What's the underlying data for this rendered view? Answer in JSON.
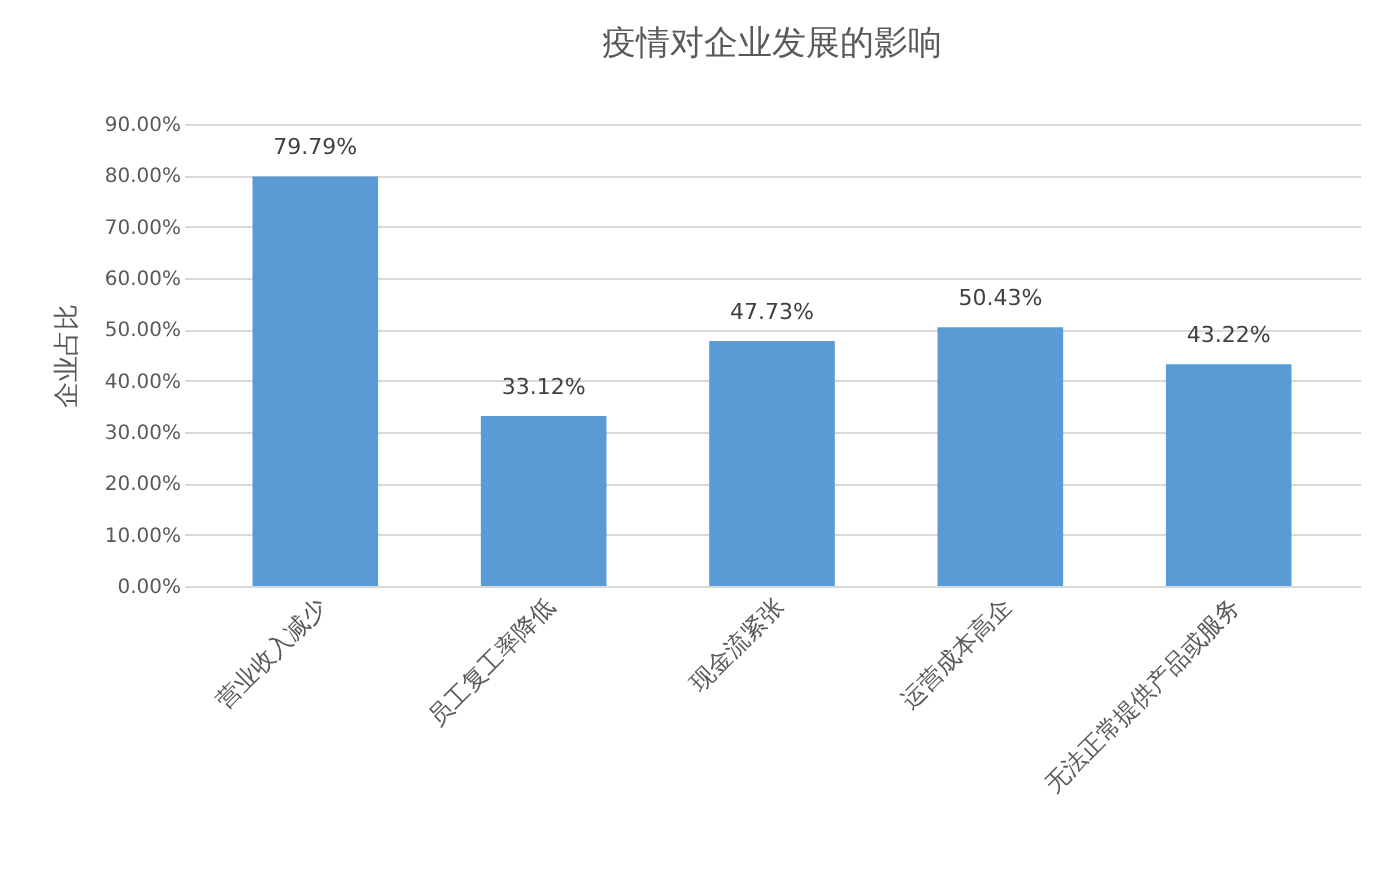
{
  "chart_data": {
    "type": "bar",
    "title": "疫情对企业发展的影响",
    "ylabel": "企业占比",
    "categories": [
      "营业收入减少",
      "员工复工率降低",
      "现金流紧张",
      "运营成本高企",
      "无法正常提供产品或服务"
    ],
    "values": [
      79.79,
      33.12,
      47.73,
      50.43,
      43.22
    ],
    "value_labels": [
      "79.79%",
      "33.12%",
      "47.73%",
      "50.43%",
      "43.22%"
    ],
    "color": "#5b9bd5",
    "ylim": [
      0,
      90
    ],
    "yticks": [
      {
        "value": 0,
        "label": "0.00%"
      },
      {
        "value": 10,
        "label": "10.00%"
      },
      {
        "value": 20,
        "label": "20.00%"
      },
      {
        "value": 30,
        "label": "30.00%"
      },
      {
        "value": 40,
        "label": "40.00%"
      },
      {
        "value": 50,
        "label": "50.00%"
      },
      {
        "value": 60,
        "label": "60.00%"
      },
      {
        "value": 70,
        "label": "70.00%"
      },
      {
        "value": 80,
        "label": "80.00%"
      },
      {
        "value": 90,
        "label": "90.00%"
      }
    ],
    "grid": "y"
  }
}
